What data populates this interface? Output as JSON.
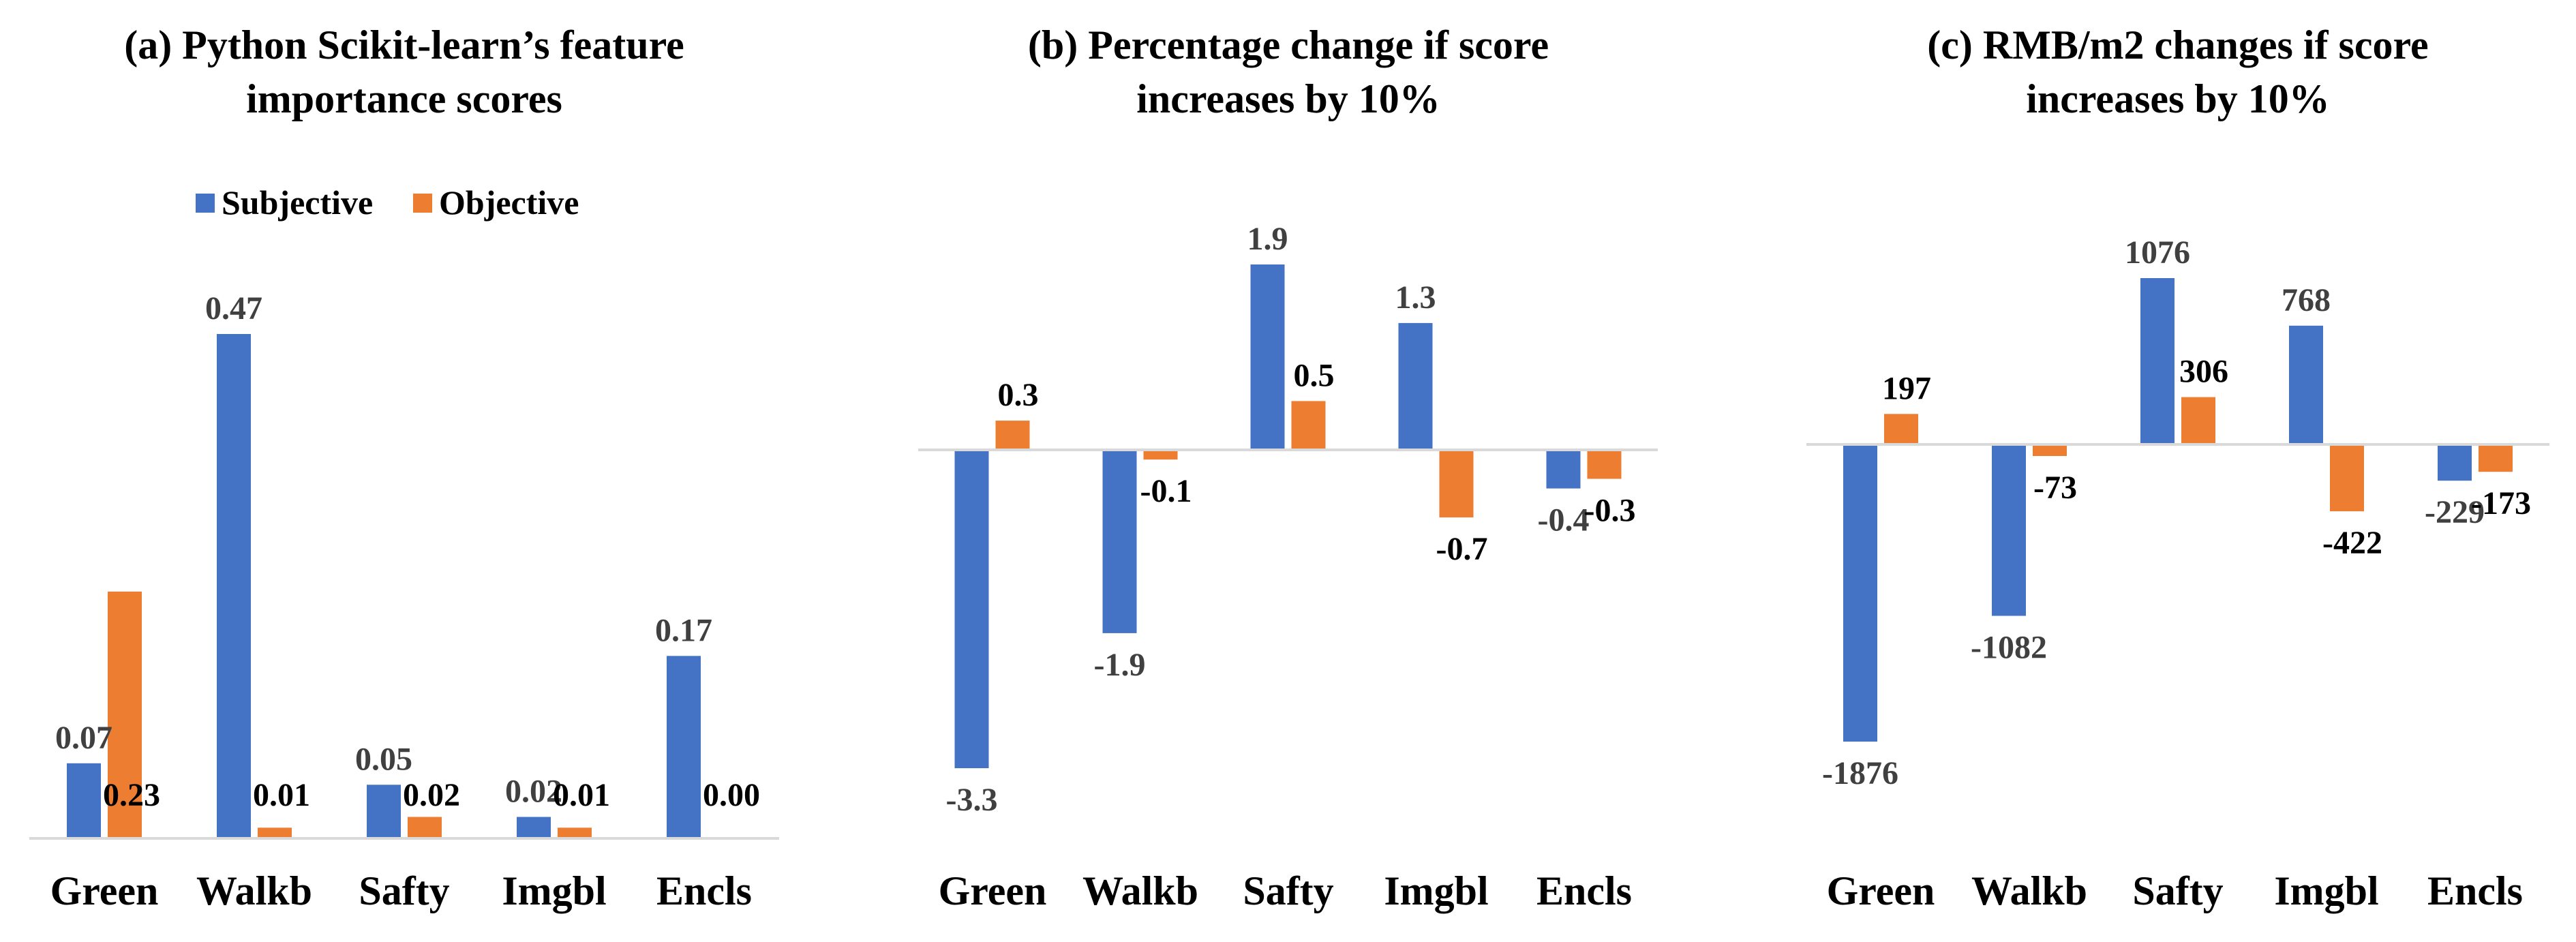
{
  "colors": {
    "subjective": "#4472C4",
    "objective": "#ED7D31",
    "axis": "#D9D9D9",
    "label_subjective": "#404040",
    "label_objective": "#000000"
  },
  "legend": [
    "Subjective",
    "Objective"
  ],
  "chart_data": [
    {
      "type": "bar",
      "title": "(a) Python Scikit-learn’s feature importance scores",
      "title_lines": [
        "(a) Python Scikit-learn’s feature",
        "importance scores"
      ],
      "categories": [
        "Green",
        "Walkb",
        "Safty",
        "Imgbl",
        "Encls"
      ],
      "series": [
        {
          "name": "Subjective",
          "values": [
            0.07,
            0.47,
            0.05,
            0.02,
            0.17
          ]
        },
        {
          "name": "Objective",
          "values": [
            0.23,
            0.01,
            0.02,
            0.01,
            0.0
          ]
        }
      ],
      "data_labels": [
        [
          "0.07",
          "0.47",
          "0.05",
          "0.02",
          "0.17"
        ],
        [
          "0.23",
          "0.01",
          "0.02",
          "0.01",
          "0.00"
        ]
      ],
      "ylim": [
        0,
        0.47
      ],
      "legend_position": "top",
      "grid": false
    },
    {
      "type": "bar",
      "title": "(b) Percentage change if score increases by 10%",
      "title_lines": [
        "(b) Percentage change if score",
        "increases by 10%"
      ],
      "categories": [
        "Green",
        "Walkb",
        "Safty",
        "Imgbl",
        "Encls"
      ],
      "series": [
        {
          "name": "Subjective",
          "values": [
            -3.3,
            -1.9,
            1.9,
            1.3,
            -0.4
          ]
        },
        {
          "name": "Objective",
          "values": [
            0.3,
            -0.1,
            0.5,
            -0.7,
            -0.3
          ]
        }
      ],
      "data_labels": [
        [
          "-3.3",
          "-1.9",
          "1.9",
          "1.3",
          "-0.4"
        ],
        [
          "0.3",
          "-0.1",
          "0.5",
          "-0.7",
          "-0.3"
        ]
      ],
      "ylim": [
        -3.3,
        1.9
      ],
      "grid": false
    },
    {
      "type": "bar",
      "title": "(c) RMB/m2 changes if score increases by 10%",
      "title_lines": [
        "(c) RMB/m2 changes if score",
        "increases by 10%"
      ],
      "categories": [
        "Green",
        "Walkb",
        "Safty",
        "Imgbl",
        "Encls"
      ],
      "series": [
        {
          "name": "Subjective",
          "values": [
            -1876,
            -1082,
            1076,
            768,
            -229
          ]
        },
        {
          "name": "Objective",
          "values": [
            197,
            -73,
            306,
            -422,
            -173
          ]
        }
      ],
      "data_labels": [
        [
          "-1876",
          "-1082",
          "1076",
          "768",
          "-229"
        ],
        [
          "197",
          "-73",
          "306",
          "-422",
          "-173"
        ]
      ],
      "ylim": [
        -1876,
        1076
      ],
      "grid": false
    }
  ]
}
